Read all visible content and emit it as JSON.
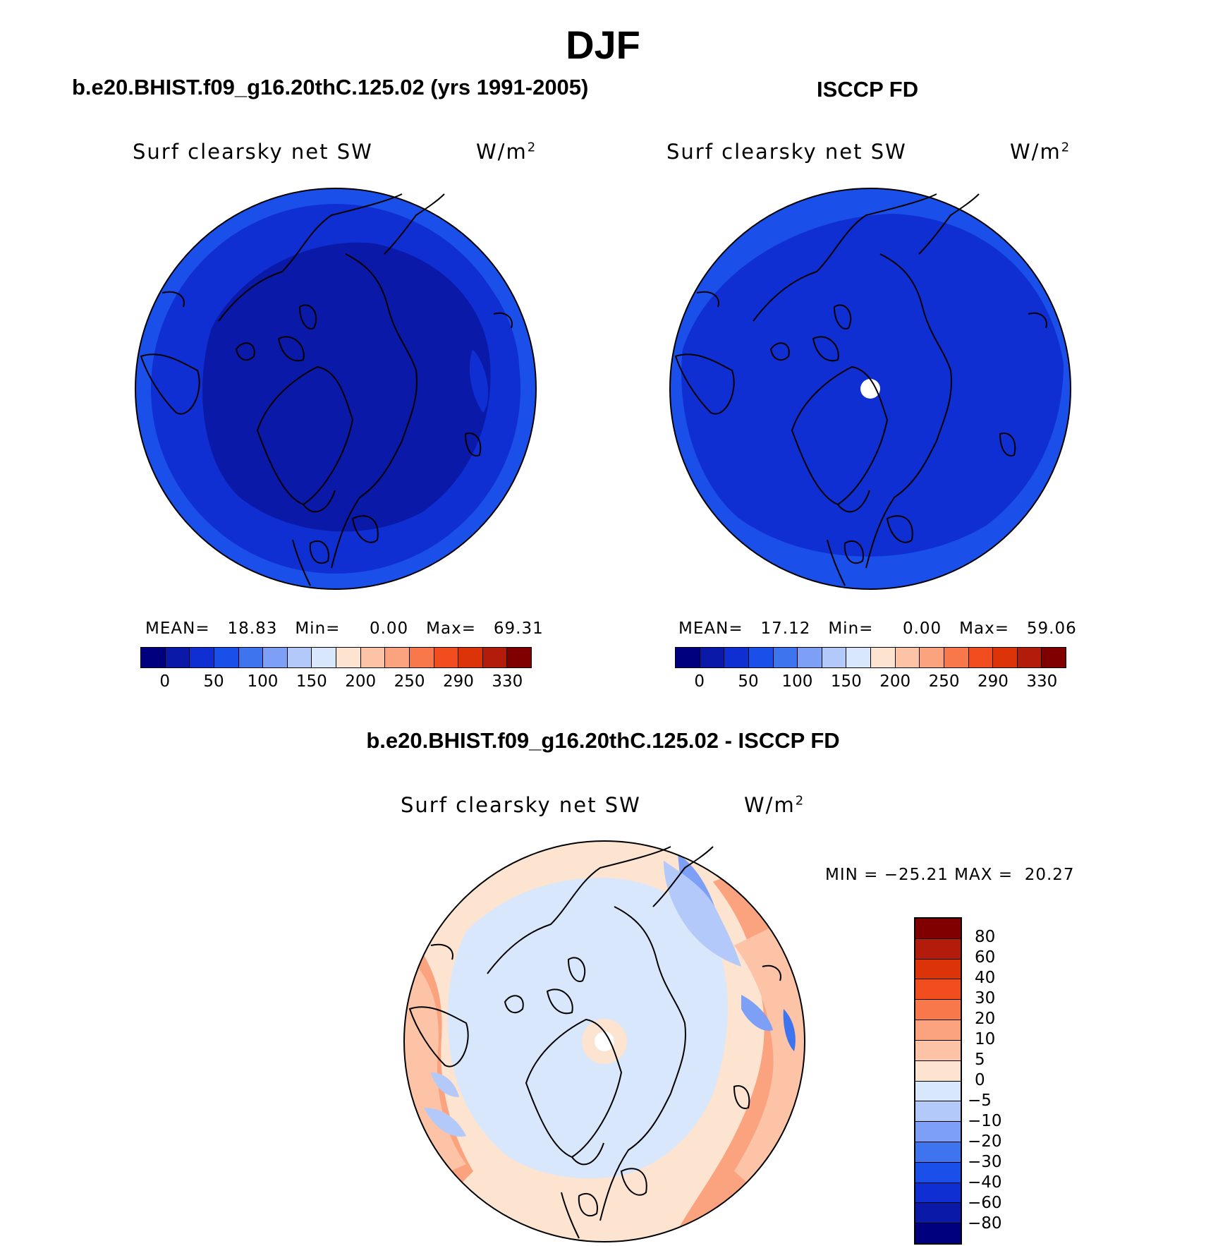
{
  "figure": {
    "title": "DJF",
    "units": "W/m",
    "units_exp": "2"
  },
  "colors": {
    "abs_scale": [
      "#00007f",
      "#0a19a8",
      "#0f2fd2",
      "#1b4fea",
      "#3f74ef",
      "#7d9ff5",
      "#b3c9fa",
      "#d8e7fb",
      "#fde4d0",
      "#fcc3a6",
      "#fba27e",
      "#f9784b",
      "#f24d1e",
      "#dc3309",
      "#b31b0b",
      "#800000"
    ],
    "diff_scale": [
      "#00007f",
      "#0a19a8",
      "#0f2fd2",
      "#1b4fea",
      "#3f74ef",
      "#7d9ff5",
      "#b3c9fa",
      "#d8e7fb",
      "#fde4d0",
      "#fcc3a6",
      "#fba27e",
      "#f9784b",
      "#f24d1e",
      "#dc3309",
      "#b31b0b",
      "#800000"
    ]
  },
  "panels": {
    "model": {
      "title": "b.e20.BHIST.f09_g16.20thC.125.02 (yrs 1991-2005)",
      "field": "Surf clearsky net SW",
      "stats": {
        "mean_label": "MEAN=",
        "mean": "18.83",
        "min_label": "Min=",
        "min": "0.00",
        "max_label": "Max=",
        "max": "69.31"
      }
    },
    "obs": {
      "title": "ISCCP FD",
      "field": "Surf clearsky net SW",
      "stats": {
        "mean_label": "MEAN=",
        "mean": "17.12",
        "min_label": "Min=",
        "min": "0.00",
        "max_label": "Max=",
        "max": "59.06"
      }
    },
    "diff": {
      "title": "b.e20.BHIST.f09_g16.20thC.125.02 - ISCCP FD",
      "field": "Surf clearsky net SW",
      "stats": {
        "min_label": "MIN =",
        "min": "−25.21",
        "max_label": "MAX =",
        "max": "20.27"
      }
    }
  },
  "abs_ticks": [
    "0",
    "50",
    "100",
    "150",
    "200",
    "250",
    "290",
    "330"
  ],
  "diff_ticks": [
    "80",
    "60",
    "40",
    "30",
    "20",
    "10",
    "5",
    "0",
    "−5",
    "−10",
    "−20",
    "−30",
    "−40",
    "−60",
    "−80"
  ],
  "chart_data": [
    {
      "type": "heatmap",
      "title": "b.e20.BHIST.f09_g16.20thC.125.02 (yrs 1991-2005)",
      "variable": "Surf clearsky net SW",
      "units": "W/m2",
      "projection": "north polar stereographic",
      "contour_levels": [
        0,
        25,
        50,
        75,
        100,
        125,
        150,
        175,
        200,
        225,
        250,
        270,
        290,
        310,
        330
      ],
      "mean": 18.83,
      "min": 0.0,
      "max": 69.31,
      "pattern": "values near 0-25 over the central Arctic, increasing to 25-50 toward the outer edge"
    },
    {
      "type": "heatmap",
      "title": "ISCCP FD",
      "variable": "Surf clearsky net SW",
      "units": "W/m2",
      "projection": "north polar stereographic",
      "contour_levels": [
        0,
        25,
        50,
        75,
        100,
        125,
        150,
        175,
        200,
        225,
        250,
        270,
        290,
        310,
        330
      ],
      "mean": 17.12,
      "min": 0.0,
      "max": 59.06,
      "pattern": "values near 0-25 over most of the domain, 25-50 in outer ring; missing value at pole"
    },
    {
      "type": "heatmap",
      "title": "b.e20.BHIST.f09_g16.20thC.125.02 - ISCCP FD",
      "variable": "Surf clearsky net SW",
      "units": "W/m2",
      "projection": "north polar stereographic",
      "contour_levels": [
        -80,
        -60,
        -40,
        -30,
        -20,
        -10,
        -5,
        0,
        5,
        10,
        20,
        30,
        40,
        60,
        80
      ],
      "min": -25.21,
      "max": 20.27,
      "pattern": "-5 to 0 over central Arctic; 0 to 5 over mid latitudes; 10-20 along outer edges; patches of -10 to -20 near Atlantic sector"
    }
  ]
}
